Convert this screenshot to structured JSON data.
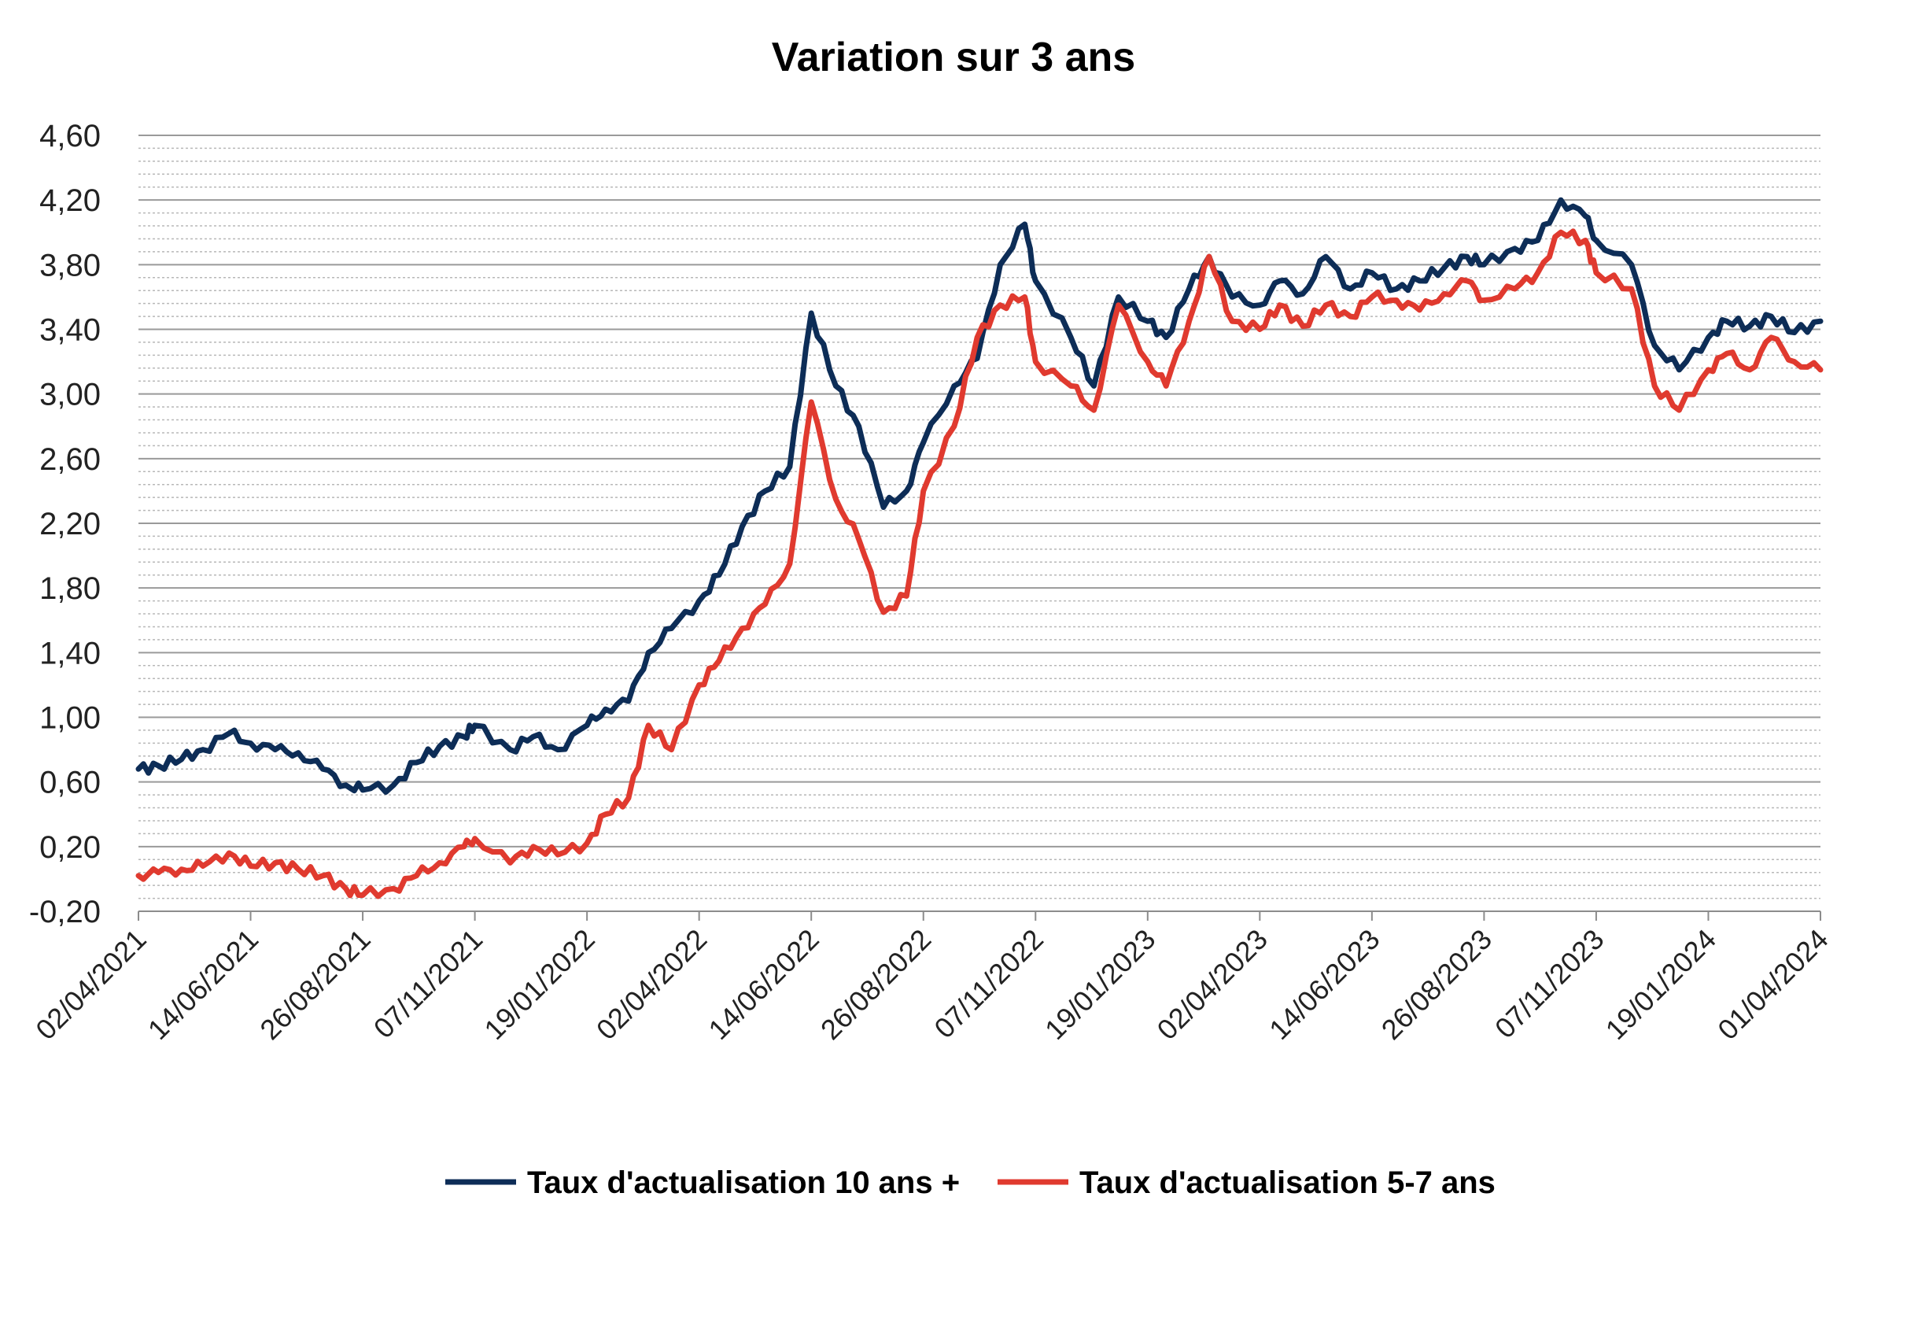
{
  "chart_data": {
    "type": "line",
    "title": "Variation sur 3 ans",
    "xlabel": "",
    "ylabel": "",
    "x_tick_labels": [
      "02/04/2021",
      "14/06/2021",
      "26/08/2021",
      "07/11/2021",
      "19/01/2022",
      "02/04/2022",
      "14/06/2022",
      "26/08/2022",
      "07/11/2022",
      "19/01/2023",
      "02/04/2023",
      "14/06/2023",
      "26/08/2023",
      "07/11/2023",
      "19/01/2024",
      "01/04/2024"
    ],
    "y_tick_labels": [
      "4,60",
      "4,20",
      "3,80",
      "3,40",
      "3,00",
      "2,60",
      "2,20",
      "1,80",
      "1,40",
      "1,00",
      "0,60",
      "0,20",
      "-0,20"
    ],
    "ylim": [
      -0.2,
      4.6
    ],
    "grid": true,
    "legend_position": "bottom",
    "x": [
      "02/04/2021",
      "15/04/2021",
      "30/04/2021",
      "14/05/2021",
      "31/05/2021",
      "14/06/2021",
      "30/06/2021",
      "15/07/2021",
      "31/07/2021",
      "15/08/2021",
      "26/08/2021",
      "15/09/2021",
      "30/09/2021",
      "15/10/2021",
      "31/10/2021",
      "07/11/2021",
      "30/11/2021",
      "15/12/2021",
      "31/12/2021",
      "19/01/2022",
      "31/01/2022",
      "15/02/2022",
      "28/02/2022",
      "15/03/2022",
      "02/04/2022",
      "15/04/2022",
      "30/04/2022",
      "15/05/2022",
      "31/05/2022",
      "14/06/2022",
      "30/06/2022",
      "15/07/2022",
      "31/07/2022",
      "15/08/2022",
      "26/08/2022",
      "15/09/2022",
      "30/09/2022",
      "15/10/2022",
      "31/10/2022",
      "07/11/2022",
      "30/11/2022",
      "15/12/2022",
      "31/12/2022",
      "19/01/2023",
      "31/01/2023",
      "15/02/2023",
      "28/02/2023",
      "15/03/2023",
      "02/04/2023",
      "15/04/2023",
      "30/04/2023",
      "15/05/2023",
      "31/05/2023",
      "14/06/2023",
      "30/06/2023",
      "15/07/2023",
      "31/07/2023",
      "15/08/2023",
      "26/08/2023",
      "15/09/2023",
      "30/09/2023",
      "15/10/2023",
      "31/10/2023",
      "07/11/2023",
      "30/11/2023",
      "15/12/2023",
      "31/12/2023",
      "19/01/2024",
      "31/01/2024",
      "15/02/2024",
      "29/02/2024",
      "15/03/2024",
      "01/04/2024"
    ],
    "series": [
      {
        "name": "Taux d'actualisation 10 ans +",
        "color": "#0d2d57",
        "values": [
          0.68,
          0.7,
          0.74,
          0.8,
          0.9,
          0.84,
          0.8,
          0.78,
          0.68,
          0.58,
          0.55,
          0.58,
          0.72,
          0.82,
          0.88,
          0.95,
          0.8,
          0.88,
          0.8,
          0.95,
          1.05,
          1.1,
          1.4,
          1.55,
          1.72,
          1.88,
          2.18,
          2.4,
          2.55,
          3.5,
          3.05,
          2.8,
          2.3,
          2.4,
          2.7,
          3.05,
          3.22,
          3.8,
          4.05,
          3.7,
          3.35,
          3.05,
          3.6,
          3.45,
          3.35,
          3.65,
          3.85,
          3.6,
          3.55,
          3.7,
          3.62,
          3.85,
          3.65,
          3.75,
          3.65,
          3.7,
          3.78,
          3.85,
          3.8,
          3.9,
          3.95,
          4.2,
          4.1,
          3.95,
          3.8,
          3.3,
          3.15,
          3.35,
          3.45,
          3.42,
          3.48,
          3.38,
          3.45
        ]
      },
      {
        "name": "Taux d'actualisation 5-7 ans",
        "color": "#e03a2f",
        "values": [
          0.02,
          0.04,
          0.06,
          0.08,
          0.16,
          0.08,
          0.1,
          0.06,
          0.02,
          -0.06,
          -0.1,
          -0.06,
          0.02,
          0.1,
          0.2,
          0.25,
          0.1,
          0.2,
          0.15,
          0.22,
          0.4,
          0.5,
          0.95,
          0.8,
          1.2,
          1.35,
          1.55,
          1.7,
          1.95,
          2.95,
          2.35,
          2.1,
          1.65,
          1.75,
          2.4,
          2.8,
          3.35,
          3.55,
          3.6,
          3.2,
          3.05,
          2.9,
          3.55,
          3.2,
          3.05,
          3.45,
          3.85,
          3.45,
          3.4,
          3.55,
          3.42,
          3.55,
          3.48,
          3.6,
          3.58,
          3.52,
          3.62,
          3.7,
          3.58,
          3.65,
          3.75,
          4.0,
          3.95,
          3.75,
          3.65,
          3.05,
          2.9,
          3.15,
          3.25,
          3.15,
          3.35,
          3.2,
          3.15
        ]
      }
    ]
  }
}
